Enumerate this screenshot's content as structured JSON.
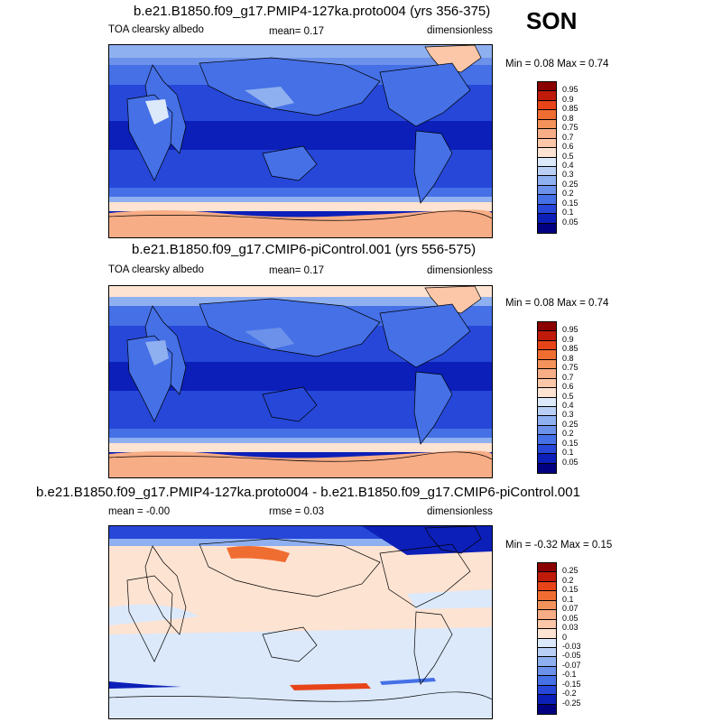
{
  "season": "SON",
  "panels": [
    {
      "title": "b.e21.B1850.f09_g17.PMIP4-127ka.proto004 (yrs 356-375)",
      "left_label": "TOA clearsky albedo",
      "center_label": "mean=   0.17",
      "right_label": "dimensionless",
      "minmax": "Min =   0.08 Max =   0.74",
      "colorbar": {
        "labels": [
          "0.95",
          "0.9",
          "0.85",
          "0.8",
          "0.75",
          "0.7",
          "0.6",
          "0.5",
          "0.4",
          "0.3",
          "0.25",
          "0.2",
          "0.15",
          "0.1",
          "0.05"
        ],
        "colors": [
          "#8b0000",
          "#c01b0a",
          "#e8441a",
          "#f06d32",
          "#f4925b",
          "#f7ad86",
          "#fbc7a8",
          "#fde3d2",
          "#dbe9fb",
          "#b9cff5",
          "#8fb0f0",
          "#6b91ea",
          "#4570e6",
          "#2647d8",
          "#0c1fb8",
          "#000080"
        ]
      }
    },
    {
      "title": "b.e21.B1850.f09_g17.CMIP6-piControl.001 (yrs 556-575)",
      "left_label": "TOA clearsky albedo",
      "center_label": "mean=   0.17",
      "right_label": "dimensionless",
      "minmax": "Min =   0.08 Max =   0.74",
      "colorbar": {
        "labels": [
          "0.95",
          "0.9",
          "0.85",
          "0.8",
          "0.75",
          "0.7",
          "0.6",
          "0.5",
          "0.4",
          "0.3",
          "0.25",
          "0.2",
          "0.15",
          "0.1",
          "0.05"
        ],
        "colors": [
          "#8b0000",
          "#c01b0a",
          "#e8441a",
          "#f06d32",
          "#f4925b",
          "#f7ad86",
          "#fbc7a8",
          "#fde3d2",
          "#dbe9fb",
          "#b9cff5",
          "#8fb0f0",
          "#6b91ea",
          "#4570e6",
          "#2647d8",
          "#0c1fb8",
          "#000080"
        ]
      }
    },
    {
      "title": "b.e21.B1850.f09_g17.PMIP4-127ka.proto004 - b.e21.B1850.f09_g17.CMIP6-piControl.001",
      "left_label": "mean =   -0.00",
      "center_label": "rmse =   0.03",
      "right_label": "dimensionless",
      "minmax": "Min =  -0.32 Max =   0.15",
      "colorbar": {
        "labels": [
          "0.25",
          "0.2",
          "0.15",
          "0.1",
          "0.07",
          "0.05",
          "0.03",
          "0",
          "-0.03",
          "-0.05",
          "-0.07",
          "-0.1",
          "-0.15",
          "-0.2",
          "-0.25"
        ],
        "colors": [
          "#8b0000",
          "#c01b0a",
          "#e8441a",
          "#f06d32",
          "#f4925b",
          "#f7ad86",
          "#fbc7a8",
          "#fde3d2",
          "#dbe9fb",
          "#b9cff5",
          "#8fb0f0",
          "#6b91ea",
          "#4570e6",
          "#2647d8",
          "#0c1fb8",
          "#000080"
        ]
      }
    }
  ]
}
